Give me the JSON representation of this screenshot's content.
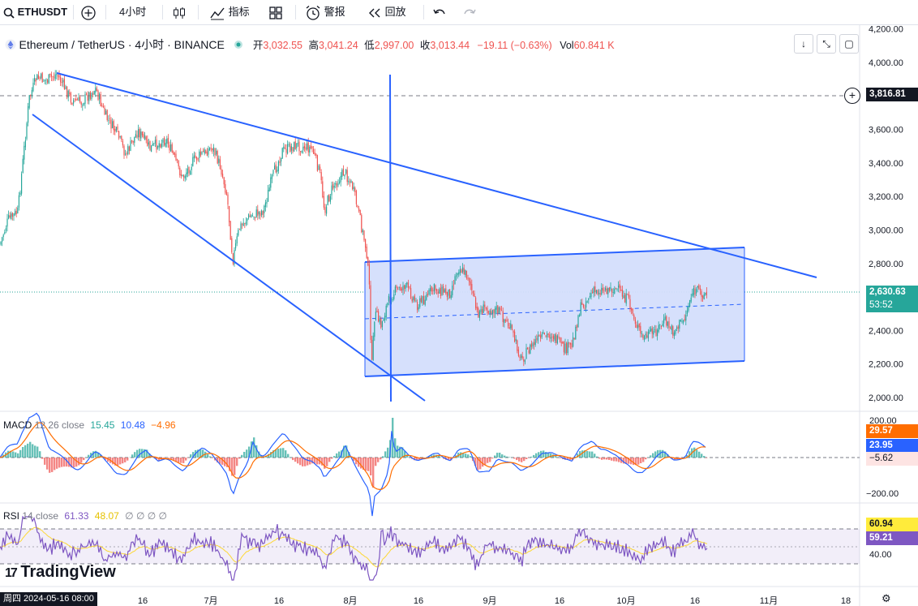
{
  "toolbar": {
    "symbol": "ETHUSDT",
    "interval": "4小时",
    "indicators_label": "指标",
    "alert_label": "警报",
    "replay_label": "回放"
  },
  "legend": {
    "name": "Ethereum / TetherUS · 4小时 · BINANCE",
    "open_label": "开",
    "open": "3,032.55",
    "high_label": "高",
    "high": "3,041.24",
    "low_label": "低",
    "low": "2,997.00",
    "close_label": "收",
    "close": "3,013.44",
    "change": "−19.11 (−0.63%)",
    "vol_label": "Vol",
    "vol": "60.841 K"
  },
  "price_axis": {
    "ticks": [
      "4,200.00",
      "4,000.00",
      "3,800.00",
      "3,600.00",
      "3,400.00",
      "3,200.00",
      "3,000.00",
      "2,800.00",
      "2,600.00",
      "2,400.00",
      "2,200.00",
      "2,000.00"
    ],
    "crosshair_price": "3,816.81",
    "last_price": "2,630.63",
    "countdown": "53:52"
  },
  "macd": {
    "label": "MACD",
    "params": "12 26 close",
    "v1": "15.45",
    "v2": "10.48",
    "v3": "−4.96",
    "axis_ticks": [
      "200.00",
      "−200.00"
    ],
    "pill_1": "29.57",
    "pill_2": "23.95",
    "pill_3": "−5.62"
  },
  "rsi": {
    "label": "RSI",
    "params": "14 close",
    "v1": "61.33",
    "v2": "48.07",
    "extras": "∅ ∅ ∅ ∅",
    "axis_tick": "40.00",
    "pill_1": "60.94",
    "pill_2": "59.21"
  },
  "time_axis": {
    "current_date": "周四 2024-05-16  08:00",
    "labels": [
      "16",
      "7月",
      "16",
      "8月",
      "16",
      "9月",
      "16",
      "10月",
      "16",
      "11月",
      "18"
    ]
  },
  "brand": "TradingView",
  "colors": {
    "up": "#26a69a",
    "down": "#ef5350",
    "drawing": "#2962ff",
    "channel_fill": "#d4defc",
    "macd_line": "#2962ff",
    "signal_line": "#ff6d00",
    "rsi_line": "#7e57c2",
    "rsi_ma": "#fdd835"
  }
}
